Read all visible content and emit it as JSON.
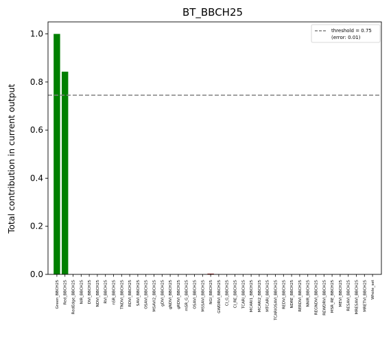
{
  "chart_data": {
    "type": "bar",
    "title": "BT_BBCH25",
    "xlabel": "",
    "ylabel": "Total contribution in current output",
    "ylim": [
      0,
      1.05
    ],
    "yticks": [
      0.0,
      0.2,
      0.4,
      0.6,
      0.8,
      1.0
    ],
    "ytick_labels": [
      "0.0",
      "0.2",
      "0.4",
      "0.6",
      "0.8",
      "1.0"
    ],
    "grid": false,
    "legend": {
      "position": "top-right",
      "entries": [
        "threshold = 0.75",
        "(error: 0.01)"
      ]
    },
    "threshold": {
      "value": 0.745,
      "style": "dashed",
      "color": "#808080"
    },
    "bar_color": "#008000",
    "categories": [
      "Green_BBCH25",
      "Red_BBCH25",
      "RedEdge_BBCH25",
      "NIR_BBCH25",
      "DVI_BBCH25",
      "NDVI_BBCH25",
      "RVI_BBCH25",
      "nSR_BBCH25",
      "TNDVI_BBCH25",
      "RDVI_BBCH25",
      "SAVI_BBCH25",
      "OSAVI_BBCH25",
      "MSAVI2_BBCH25",
      "gDVI_BBCH25",
      "gNDVI_BBCH25",
      "gRDVI_BBCH25",
      "mSR_G_BBCH25",
      "OSAVI_BBCH25",
      "MSSAVI_BBCH25",
      "NGI_BBCH25",
      "GWDRVI_BBCH25",
      "CI_G_BBCH25",
      "CI_RE_BBCH25",
      "TCARI_BBCH25",
      "MCARI1_BBCH25",
      "MCARI2_BBCH25",
      "MTCARI_BBCH25",
      "TCARIOSAVI_BBCH25",
      "REDVI_BBCH25",
      "NDRE_BBCH25",
      "RERDVI_BBCH25",
      "NNIR_BBCH25",
      "REGNDVI_BBCH25",
      "REWDRVI_BBCH25",
      "MSR_RE_BBCH25",
      "MEVI_BBCH25",
      "RESAVI_BBCH25",
      "MRESAVI_BBCH25",
      "MRETVI_BBCH25",
      "Whole_set"
    ],
    "values": [
      1.0,
      0.843,
      0,
      0,
      0,
      0,
      0,
      0,
      0,
      0,
      0,
      0,
      0,
      0,
      0,
      0,
      0,
      0,
      0,
      0.003,
      0,
      0,
      0,
      0,
      0,
      0,
      0,
      0,
      0,
      0,
      0,
      0,
      0,
      0,
      0,
      0,
      0,
      0,
      0,
      0
    ],
    "bar_colors_special": {
      "19": "#8b0000"
    }
  }
}
